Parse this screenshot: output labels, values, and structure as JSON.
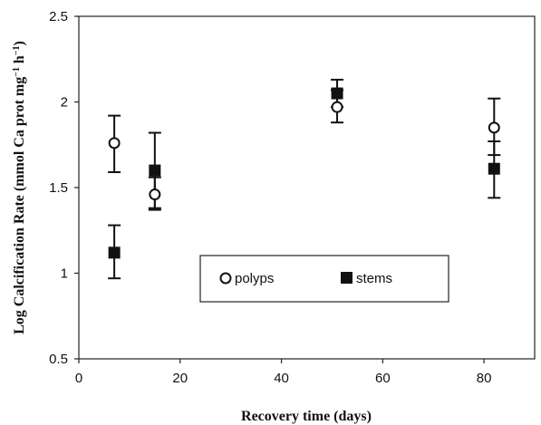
{
  "chart_data": {
    "type": "scatter",
    "xlabel": "Recovery time (days)",
    "ylabel": "Log Calcification Rate (mmol Ca prot mg",
    "ylabel_sup1": "−1",
    "ylabel_mid": " h",
    "ylabel_sup2": "−1",
    "ylabel_end": ")",
    "xlim": [
      0,
      90
    ],
    "ylim": [
      0.5,
      2.5
    ],
    "xticks": [
      0,
      20,
      40,
      60,
      80
    ],
    "yticks": [
      0.5,
      1,
      1.5,
      2,
      2.5
    ],
    "ytick_labels": [
      "0.5",
      "1",
      "1.5",
      "2",
      "2.5"
    ],
    "grid": false,
    "legend_position": "inside lower-right",
    "series": [
      {
        "name": "polyps",
        "marker": "open-circle",
        "points": [
          {
            "x": 7,
            "y": 1.76,
            "err_low": 1.59,
            "err_high": 1.92
          },
          {
            "x": 15,
            "y": 1.46,
            "err_low": 1.37,
            "err_high": 1.56
          },
          {
            "x": 51,
            "y": 1.97,
            "err_low": 1.88,
            "err_high": 2.07
          },
          {
            "x": 82,
            "y": 1.85,
            "err_low": 1.69,
            "err_high": 2.02
          }
        ]
      },
      {
        "name": "stems",
        "marker": "filled-square",
        "points": [
          {
            "x": 7,
            "y": 1.12,
            "err_low": 0.97,
            "err_high": 1.28
          },
          {
            "x": 15,
            "y": 1.6,
            "err_low": 1.38,
            "err_high": 1.82
          },
          {
            "x": 51,
            "y": 2.05,
            "err_low": 1.97,
            "err_high": 2.13
          },
          {
            "x": 82,
            "y": 1.61,
            "err_low": 1.44,
            "err_high": 1.77
          }
        ]
      }
    ]
  }
}
